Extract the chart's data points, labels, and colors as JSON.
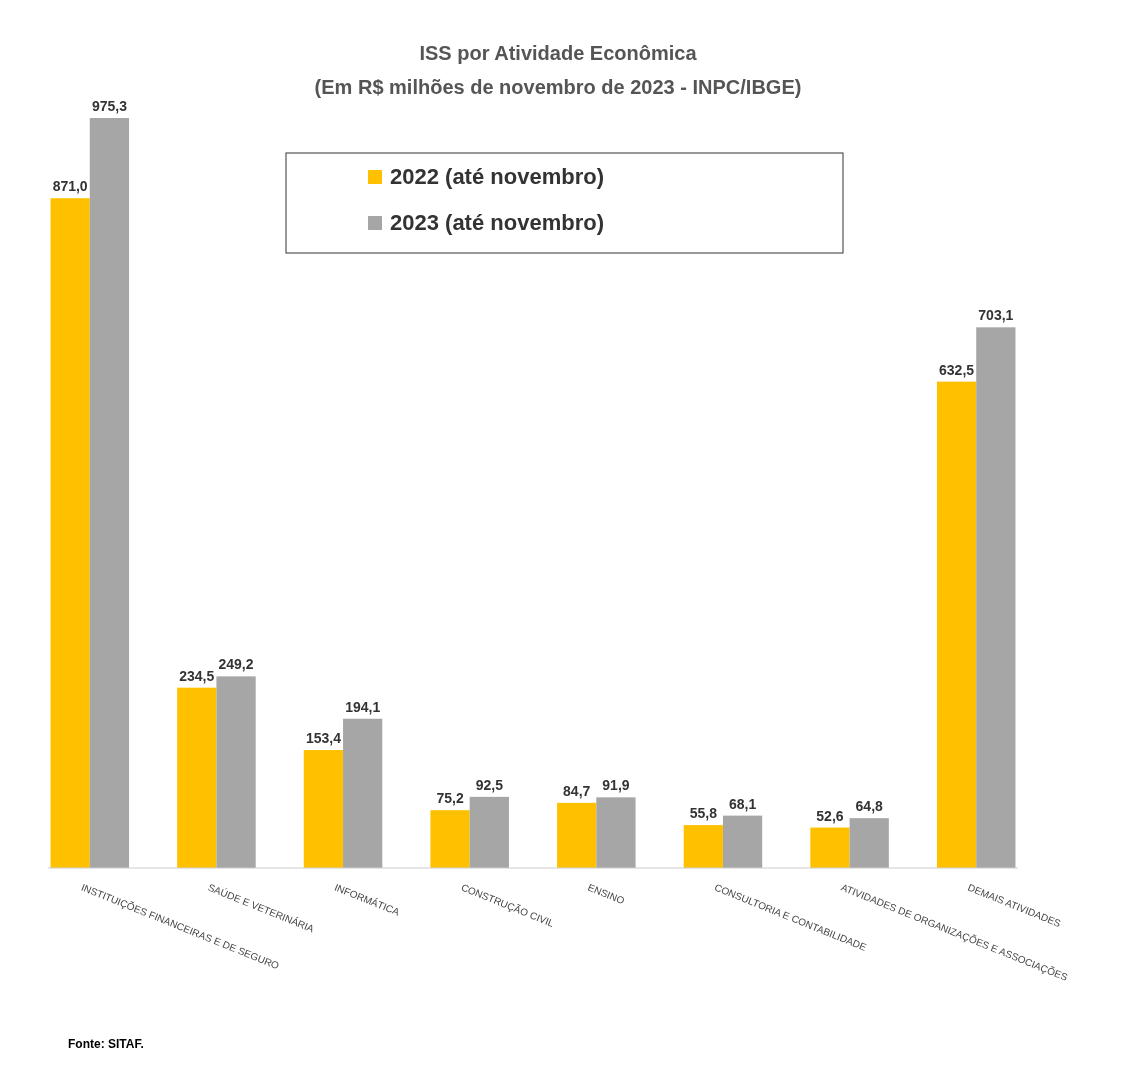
{
  "chart_data": {
    "type": "bar",
    "title": "ISS por Atividade Econômica",
    "subtitle": "(Em R$ milhões de novembro de 2023 - INPC/IBGE)",
    "categories": [
      "INSTITUIÇÕES FINANCEIRAS E DE SEGURO",
      "SAÚDE E VETERINÁRIA",
      "INFORMÁTICA",
      "CONSTRUÇÃO CIVIL",
      "ENSINO",
      "CONSULTORIA E CONTABILIDADE",
      "ATIVIDADES DE ORGANIZAÇÕES E ASSOCIAÇÕES",
      "DEMAIS ATIVIDADES"
    ],
    "series": [
      {
        "name": "2022 (até novembro)",
        "color": "#ffc000",
        "values": [
          871.0,
          234.5,
          153.4,
          75.2,
          84.7,
          55.8,
          52.6,
          632.5
        ],
        "value_labels": [
          "871,0",
          "234,5",
          "153,4",
          "75,2",
          "84,7",
          "55,8",
          "52,6",
          "632,5"
        ]
      },
      {
        "name": "2023 (até novembro)",
        "color": "#a6a6a6",
        "values": [
          975.3,
          249.2,
          194.1,
          92.5,
          91.9,
          68.1,
          64.8,
          703.1
        ],
        "value_labels": [
          "975,3",
          "249,2",
          "194,1",
          "92,5",
          "91,9",
          "68,1",
          "64,8",
          "703,1"
        ]
      }
    ],
    "legend": "top",
    "tick_labels": "x",
    "annotations": [
      "Fonte: SITAF."
    ]
  }
}
